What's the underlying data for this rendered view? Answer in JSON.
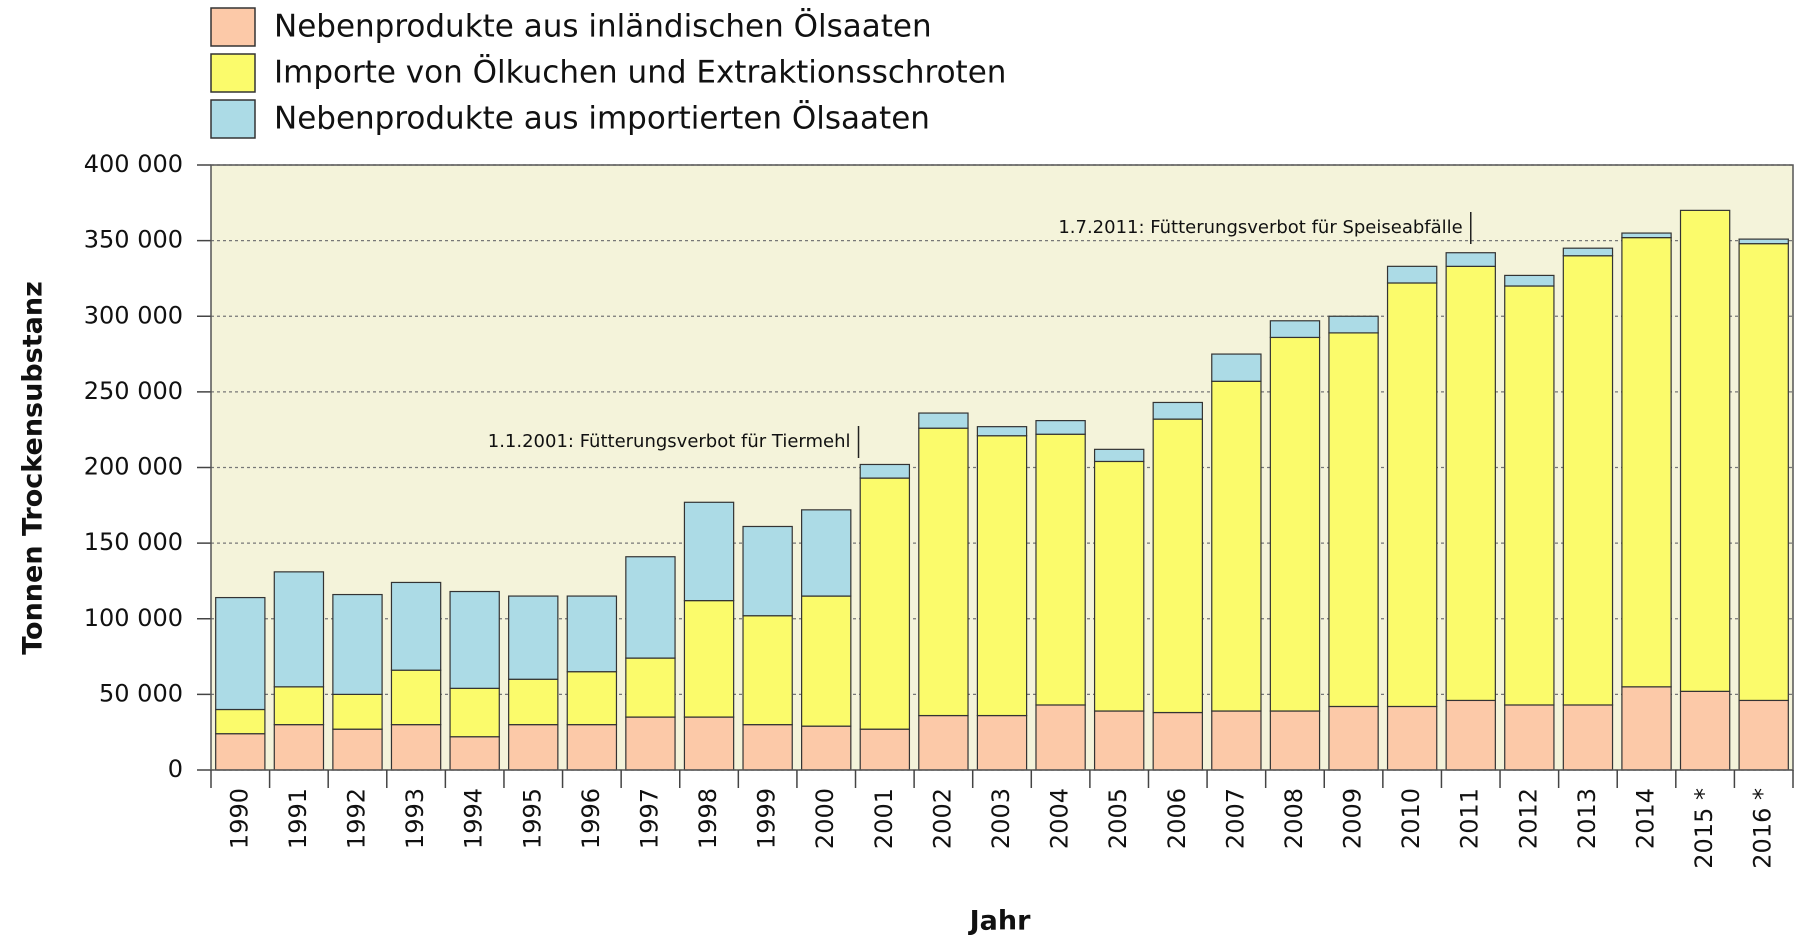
{
  "chart_data": {
    "type": "stacked_bar",
    "x_label": "Jahr",
    "y_label": "Tonnen Trockensubstanz",
    "categories": [
      "1990",
      "1991",
      "1992",
      "1993",
      "1994",
      "1995",
      "1996",
      "1997",
      "1998",
      "1999",
      "2000",
      "2001",
      "2002",
      "2003",
      "2004",
      "2005",
      "2006",
      "2007",
      "2008",
      "2009",
      "2010",
      "2011",
      "2012",
      "2013",
      "2014",
      "2015 *",
      "2016 *"
    ],
    "series": [
      {
        "name": "Nebenprodukte aus inländischen Ölsaaten",
        "color": "#fcc9a8",
        "values": [
          24000,
          30000,
          27000,
          30000,
          22000,
          30000,
          30000,
          35000,
          35000,
          30000,
          29000,
          27000,
          36000,
          36000,
          43000,
          39000,
          38000,
          39000,
          39000,
          42000,
          42000,
          46000,
          43000,
          43000,
          55000,
          52000,
          46000
        ]
      },
      {
        "name": "Importe von Ölkuchen und Extraktionsschroten",
        "color": "#fbfb6b",
        "values": [
          16000,
          25000,
          23000,
          36000,
          32000,
          30000,
          35000,
          39000,
          77000,
          72000,
          86000,
          166000,
          190000,
          185000,
          179000,
          165000,
          194000,
          218000,
          247000,
          247000,
          280000,
          287000,
          277000,
          297000,
          297000,
          318000,
          302000
        ]
      },
      {
        "name": "Nebenprodukte aus importierten Ölsaaten",
        "color": "#acdbe6",
        "values": [
          74000,
          76000,
          66000,
          58000,
          64000,
          55000,
          50000,
          67000,
          65000,
          59000,
          57000,
          9000,
          10000,
          6000,
          9000,
          8000,
          11000,
          18000,
          11000,
          11000,
          11000,
          9000,
          7000,
          5000,
          3000,
          0,
          3000
        ]
      }
    ],
    "ylim": [
      0,
      400000
    ],
    "yticks": [
      {
        "value": 0,
        "label": "0"
      },
      {
        "value": 50000,
        "label": "50 000"
      },
      {
        "value": 100000,
        "label": "100 000"
      },
      {
        "value": 150000,
        "label": "150 000"
      },
      {
        "value": 200000,
        "label": "200 000"
      },
      {
        "value": 250000,
        "label": "250 000"
      },
      {
        "value": 300000,
        "label": "300 000"
      },
      {
        "value": 350000,
        "label": "350 000"
      },
      {
        "value": 400000,
        "label": "400 000"
      }
    ],
    "grid": true,
    "annotations": [
      "1.1.2001: Fütterungsverbot für Tiermehl",
      "1.7.2011: Fütterungsverbot für Speiseabfälle"
    ]
  }
}
